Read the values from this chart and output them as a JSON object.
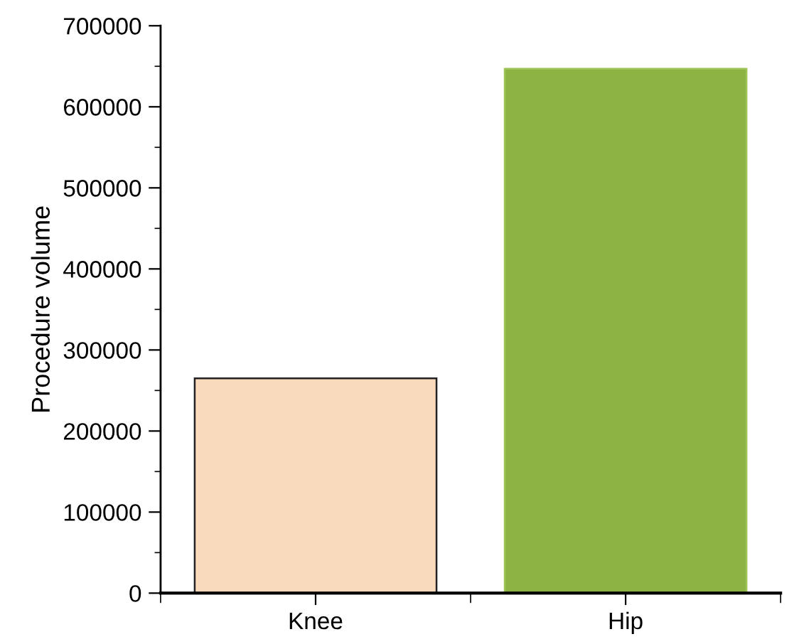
{
  "chart_data": {
    "type": "bar",
    "ylabel": "Procedure volume",
    "categories": [
      "Knee",
      "Hip"
    ],
    "values": [
      265000,
      647000
    ],
    "colors": [
      "#f9dabd",
      "#8db443"
    ],
    "ylim": [
      0,
      700000
    ],
    "yticks": [
      0,
      {
        "value": 50000,
        "label": null
      },
      100000,
      {
        "value": 150000,
        "label": null
      },
      200000,
      {
        "value": 250000,
        "label": null
      },
      300000,
      {
        "value": 350000,
        "label": null
      },
      400000,
      {
        "value": 450000,
        "label": null
      },
      500000,
      {
        "value": 550000,
        "label": null
      },
      600000,
      {
        "value": 650000,
        "label": null
      },
      700000
    ],
    "grid": false
  }
}
